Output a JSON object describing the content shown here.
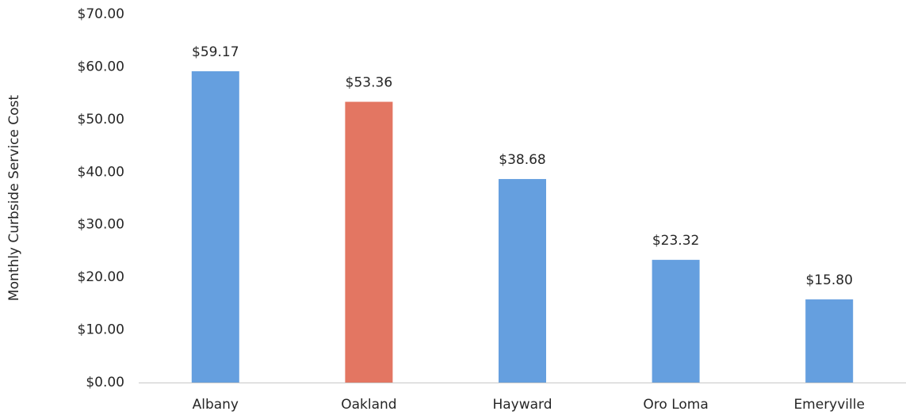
{
  "chart_data": {
    "type": "bar",
    "y_label": "Monthly Curbside Service Cost",
    "categories": [
      "Albany",
      "Oakland",
      "Hayward",
      "Oro Loma",
      "Emeryville"
    ],
    "values": [
      59.17,
      53.36,
      38.68,
      23.32,
      15.8
    ],
    "value_labels": [
      "$59.17",
      "$53.36",
      "$38.68",
      "$23.32",
      "$15.80"
    ],
    "colors": [
      "#659fdf",
      "#e37662",
      "#659fdf",
      "#659fdf",
      "#659fdf"
    ],
    "ylim": [
      0,
      70
    ],
    "yticks": [
      {
        "value": 0,
        "label": "$0.00"
      },
      {
        "value": 10,
        "label": "$10.00"
      },
      {
        "value": 20,
        "label": "$20.00"
      },
      {
        "value": 30,
        "label": "$30.00"
      },
      {
        "value": 40,
        "label": "$40.00"
      },
      {
        "value": 50,
        "label": "$50.00"
      },
      {
        "value": 60,
        "label": "$60.00"
      },
      {
        "value": 70,
        "label": "$70.00"
      }
    ],
    "grid": false
  }
}
